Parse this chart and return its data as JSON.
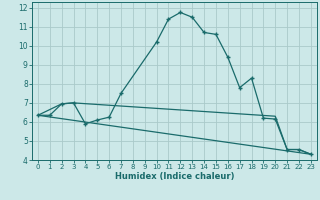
{
  "title": "",
  "xlabel": "Humidex (Indice chaleur)",
  "bg_color": "#cce8e8",
  "grid_color": "#aacaca",
  "line_color": "#1a6b6b",
  "xlim": [
    -0.5,
    23.5
  ],
  "ylim": [
    4,
    12.3
  ],
  "xticks": [
    0,
    1,
    2,
    3,
    4,
    5,
    6,
    7,
    8,
    9,
    10,
    11,
    12,
    13,
    14,
    15,
    16,
    17,
    18,
    19,
    20,
    21,
    22,
    23
  ],
  "yticks": [
    4,
    5,
    6,
    7,
    8,
    9,
    10,
    11,
    12
  ],
  "line1_x": [
    0,
    1,
    2,
    3,
    4,
    5,
    6,
    7,
    10,
    11,
    12,
    13,
    14,
    15,
    16,
    17,
    18,
    19,
    20,
    21,
    22,
    23
  ],
  "line1_y": [
    6.35,
    6.35,
    6.95,
    7.0,
    5.9,
    6.1,
    6.25,
    7.5,
    10.2,
    11.4,
    11.75,
    11.5,
    10.7,
    10.6,
    9.4,
    7.8,
    8.3,
    6.2,
    6.15,
    4.55,
    4.55,
    4.3
  ],
  "line2_x": [
    0,
    2,
    3,
    20,
    21,
    22,
    23
  ],
  "line2_y": [
    6.35,
    6.95,
    7.0,
    6.3,
    4.55,
    4.55,
    4.3
  ],
  "line3_x": [
    0,
    23
  ],
  "line3_y": [
    6.35,
    4.3
  ]
}
